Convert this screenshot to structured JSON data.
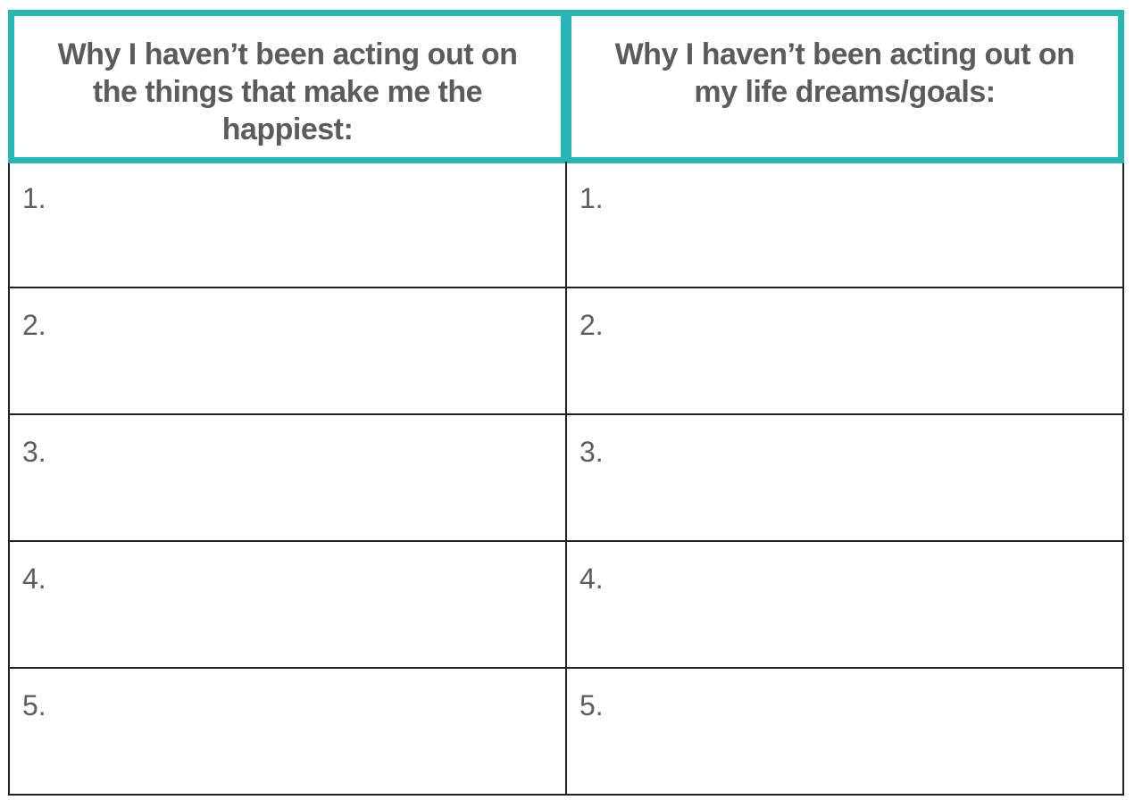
{
  "header": {
    "column_1": "Why I haven’t been acting out on the things that make me the happiest:",
    "column_2": "Why I haven’t been acting out on my life dreams/goals:"
  },
  "rows": [
    {
      "col1": "1.",
      "col2": "1."
    },
    {
      "col1": "2.",
      "col2": "2."
    },
    {
      "col1": "3.",
      "col2": "3."
    },
    {
      "col1": "4.",
      "col2": "4."
    },
    {
      "col1": "5.",
      "col2": "5."
    }
  ],
  "colors": {
    "header_border": "#26b6b3",
    "text": "#5b5b5b",
    "grid_lines": "#222222"
  }
}
